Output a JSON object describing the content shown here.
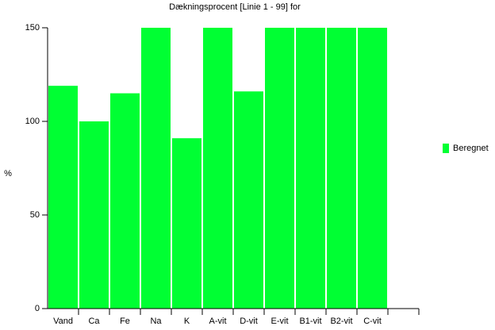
{
  "chart_data": {
    "type": "bar",
    "title": "Dækningsprocent [Linie 1 - 99] for",
    "y_label": "%",
    "categories": [
      "Vand",
      "Ca",
      "Fe",
      "Na",
      "K",
      "A-vit",
      "D-vit",
      "E-vit",
      "B1-vit",
      "B2-vit",
      "C-vit",
      null
    ],
    "series": [
      {
        "name": "Beregnet",
        "color": "#00ff33",
        "values": [
          119,
          100,
          115,
          150,
          91,
          150,
          116,
          150,
          150,
          150,
          150,
          null
        ]
      }
    ],
    "ylim": [
      0,
      150
    ],
    "yticks": [
      0,
      50,
      100,
      150
    ],
    "legend": "right"
  }
}
